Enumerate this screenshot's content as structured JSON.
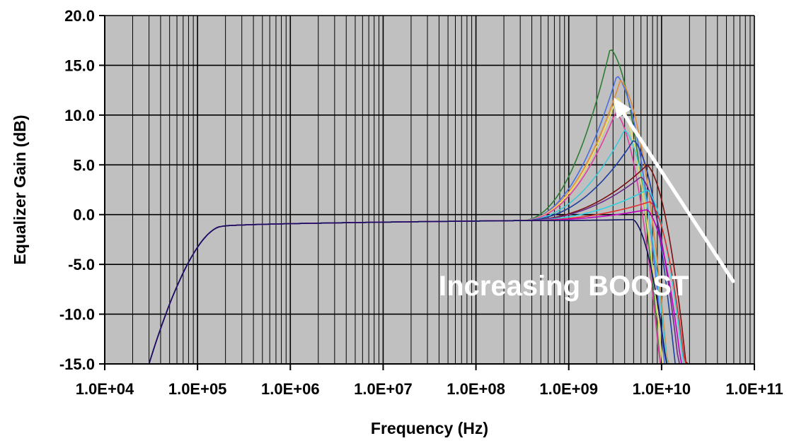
{
  "chart_data": {
    "type": "line",
    "title": "",
    "xlabel": "Frequency (Hz)",
    "ylabel": "Equalizer Gain (dB)",
    "x_scale": "log",
    "xlim": [
      10000,
      100000000000
    ],
    "ylim": [
      -15,
      20
    ],
    "x_ticks": [
      10000,
      100000,
      1000000,
      10000000,
      100000000,
      1000000000,
      10000000000,
      100000000000
    ],
    "x_tick_labels": [
      "1.0E+04",
      "1.0E+05",
      "1.0E+06",
      "1.0E+07",
      "1.0E+08",
      "1.0E+09",
      "1.0E+10",
      "1.0E+11"
    ],
    "y_ticks": [
      -15,
      -10,
      -5,
      0,
      5,
      10,
      15,
      20
    ],
    "y_tick_labels": [
      "-15.0",
      "-10.0",
      "-5.0",
      "0.0",
      "5.0",
      "10.0",
      "15.0",
      "20.0"
    ],
    "grid": true,
    "minor_grid_x": true,
    "legend": "none",
    "colors": {
      "plot_background": "#c0c0c0",
      "grid": "#000000",
      "annotation": "#ffffff"
    },
    "annotation": {
      "text": "Increasing BOOST"
    },
    "series": [
      {
        "color": "#2e7d32",
        "peak_x": 2800000000,
        "peak_y": 16.7
      },
      {
        "color": "#4a6fe0",
        "peak_x": 3300000000,
        "peak_y": 14.0
      },
      {
        "color": "#e08a3c",
        "peak_x": 3600000000,
        "peak_y": 13.5
      },
      {
        "color": "#f0e060",
        "peak_x": 3300000000,
        "peak_y": 11.8
      },
      {
        "color": "#e040a0",
        "peak_x": 3200000000,
        "peak_y": 10.3
      },
      {
        "color": "#40c8d8",
        "peak_x": 4000000000,
        "peak_y": 8.5
      },
      {
        "color": "#1f3fa0",
        "peak_x": 5000000000,
        "peak_y": 7.5
      },
      {
        "color": "#7a1010",
        "peak_x": 7000000000,
        "peak_y": 5.0
      },
      {
        "color": "#6a2a8a",
        "peak_x": 6000000000,
        "peak_y": 3.8
      },
      {
        "color": "#30d0e0",
        "peak_x": 7000000000,
        "peak_y": 2.5
      },
      {
        "color": "#e03030",
        "peak_x": 7500000000,
        "peak_y": 1.3
      },
      {
        "color": "#c000c0",
        "peak_x": 7000000000,
        "peak_y": 0.5
      },
      {
        "color": "#101060",
        "peak_x": 5000000000,
        "peak_y": -0.5
      }
    ]
  }
}
